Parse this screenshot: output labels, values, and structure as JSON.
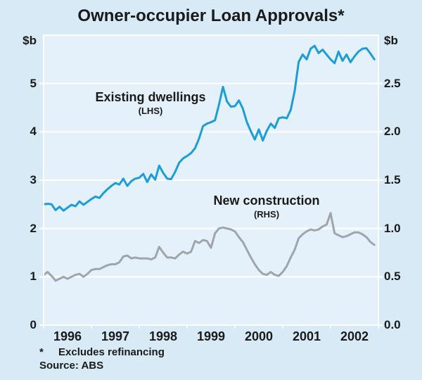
{
  "title": "Owner-occupier Loan Approvals*",
  "axes": {
    "left_unit": "$b",
    "right_unit": "$b",
    "left_tick_labels": [
      "0",
      "1",
      "2",
      "3",
      "4",
      "5"
    ],
    "right_tick_labels": [
      "0.0",
      "0.5",
      "1.0",
      "1.5",
      "2.0",
      "2.5"
    ],
    "x_tick_labels": [
      "1996",
      "1997",
      "1998",
      "1999",
      "2000",
      "2001",
      "2002"
    ]
  },
  "annotations": {
    "series1_label": "Existing dwellings",
    "series1_sub": "(LHS)",
    "series2_label": "New construction",
    "series2_sub": "(RHS)"
  },
  "footnote": {
    "marker": "*",
    "text": "Excludes refinancing",
    "source": "Source: ABS"
  },
  "colors": {
    "background": "#d7eaf6",
    "plot_background": "#e4f1fa",
    "grid": "#ffffff",
    "existing_dwellings": "#1b9dd9",
    "new_construction": "#9fa5aa",
    "text": "#1a1a1a"
  },
  "chart_data": {
    "type": "line",
    "title": "Owner-occupier Loan Approvals*",
    "frequency": "monthly",
    "x_start": "1996-01",
    "x_end": "2002-12",
    "x_years": [
      1996,
      1997,
      1998,
      1999,
      2000,
      2001,
      2002
    ],
    "grid": true,
    "lhs": {
      "label": "$b",
      "range": [
        0,
        6
      ],
      "ticks": [
        0,
        1,
        2,
        3,
        4,
        5
      ],
      "tick_labels": [
        "0",
        "1",
        "2",
        "3",
        "4",
        "5"
      ]
    },
    "rhs": {
      "label": "$b",
      "range": [
        0,
        3
      ],
      "ticks": [
        0,
        0.5,
        1,
        1.5,
        2,
        2.5
      ],
      "tick_labels": [
        "0.0",
        "0.5",
        "1.0",
        "1.5",
        "2.0",
        "2.5"
      ]
    },
    "series": [
      {
        "name": "Existing dwellings",
        "axis": "LHS",
        "color": "#1b9dd9",
        "data_name": "existing-dwellings-line",
        "values": [
          2.5,
          2.51,
          2.5,
          2.38,
          2.45,
          2.37,
          2.43,
          2.49,
          2.46,
          2.56,
          2.49,
          2.55,
          2.61,
          2.66,
          2.63,
          2.73,
          2.81,
          2.88,
          2.94,
          2.91,
          3.03,
          2.88,
          2.98,
          3.03,
          3.05,
          3.13,
          2.96,
          3.12,
          3.01,
          3.3,
          3.15,
          3.03,
          3.02,
          3.17,
          3.36,
          3.45,
          3.5,
          3.56,
          3.66,
          3.86,
          4.12,
          4.17,
          4.2,
          4.24,
          4.56,
          4.93,
          4.63,
          4.52,
          4.53,
          4.65,
          4.48,
          4.2,
          4.01,
          3.84,
          4.05,
          3.82,
          4.02,
          4.17,
          4.08,
          4.28,
          4.3,
          4.28,
          4.45,
          4.85,
          5.45,
          5.6,
          5.5,
          5.72,
          5.78,
          5.63,
          5.7,
          5.6,
          5.5,
          5.42,
          5.66,
          5.47,
          5.6,
          5.44,
          5.56,
          5.66,
          5.72,
          5.73,
          5.62,
          5.5
        ]
      },
      {
        "name": "New construction",
        "axis": "RHS",
        "color": "#9fa5aa",
        "data_name": "new-construction-line",
        "values": [
          0.52,
          0.55,
          0.51,
          0.46,
          0.48,
          0.5,
          0.48,
          0.5,
          0.52,
          0.53,
          0.5,
          0.53,
          0.57,
          0.58,
          0.58,
          0.6,
          0.62,
          0.63,
          0.63,
          0.65,
          0.71,
          0.72,
          0.69,
          0.7,
          0.69,
          0.69,
          0.69,
          0.68,
          0.7,
          0.81,
          0.75,
          0.7,
          0.7,
          0.69,
          0.73,
          0.76,
          0.74,
          0.76,
          0.87,
          0.85,
          0.88,
          0.87,
          0.8,
          0.95,
          1.0,
          1.01,
          1.0,
          0.99,
          0.97,
          0.91,
          0.86,
          0.78,
          0.7,
          0.63,
          0.57,
          0.53,
          0.52,
          0.55,
          0.52,
          0.51,
          0.55,
          0.61,
          0.7,
          0.78,
          0.9,
          0.94,
          0.97,
          0.99,
          0.98,
          0.99,
          1.02,
          1.04,
          1.16,
          0.95,
          0.93,
          0.91,
          0.92,
          0.94,
          0.96,
          0.96,
          0.94,
          0.91,
          0.86,
          0.83
        ]
      }
    ]
  }
}
